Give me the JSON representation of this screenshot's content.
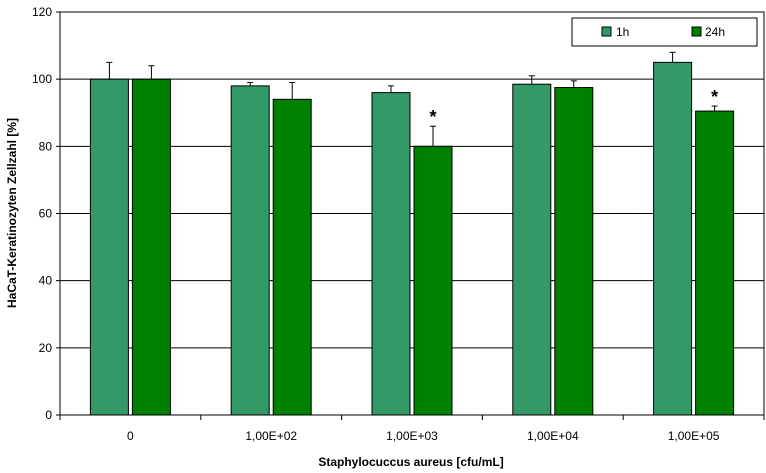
{
  "chart_data": {
    "type": "bar",
    "title": "",
    "xlabel": "Staphylocuccus aureus [cfu/mL]",
    "ylabel": "HaCaT-Keratinozyten Zellzahl [%]",
    "ylim": [
      0,
      120
    ],
    "yticks": [
      "0",
      "20",
      "40",
      "60",
      "80",
      "100",
      "120"
    ],
    "grid": "horizontal",
    "legend_position": "top-right",
    "categories": [
      "0",
      "1,00E+02",
      "1,00E+03",
      "1,00E+04",
      "1,00E+05"
    ],
    "series": [
      {
        "name": "1h",
        "color": "#339966",
        "values": [
          100,
          98,
          96,
          98.5,
          105
        ],
        "errors": [
          5,
          1,
          2,
          2.5,
          3
        ],
        "markers": [
          "",
          "",
          "",
          "",
          ""
        ]
      },
      {
        "name": "24h",
        "color": "#008000",
        "values": [
          100,
          94,
          80,
          97.5,
          90.5
        ],
        "errors": [
          4,
          5,
          6,
          2,
          1.5
        ],
        "markers": [
          "",
          "",
          "*",
          "",
          "*"
        ]
      }
    ]
  }
}
